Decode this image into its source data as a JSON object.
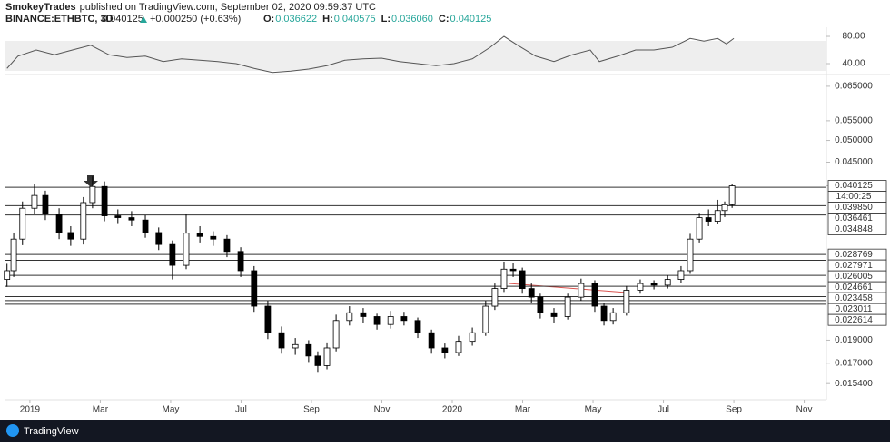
{
  "header": {
    "author": "SmokeyTrades",
    "published": "published on TradingView.com, September 02, 2020 09:59:37 UTC",
    "symbol": "BINANCE:ETHBTC, 3D",
    "last": "0.040125",
    "change": "+0.000250 (+0.63%)",
    "ohlc": [
      {
        "label": "O:",
        "value": "0.036622"
      },
      {
        "label": "H:",
        "value": "0.040575"
      },
      {
        "label": "L:",
        "value": "0.036060"
      },
      {
        "label": "C:",
        "value": "0.040125"
      }
    ]
  },
  "footer": {
    "brand": "TradingView"
  },
  "chart_data": [
    {
      "type": "line",
      "color": "#555555",
      "ylim": [
        24,
        90.7
      ],
      "yticks": [
        {
          "value": 80,
          "label": "80.00"
        },
        {
          "value": 40,
          "label": "40.00"
        }
      ],
      "x": [
        -0.65,
        -0.34,
        0.18,
        0.7,
        1.21,
        1.73,
        2.25,
        2.76,
        3.28,
        3.79,
        4.31,
        4.83,
        5.34,
        5.86,
        6.37,
        6.89,
        7.41,
        7.92,
        8.44,
        8.95,
        9.47,
        9.99,
        10.5,
        11.02,
        11.54,
        12.05,
        12.57,
        13.08,
        13.47,
        13.86,
        14.37,
        14.89,
        15.41,
        15.92,
        16.18,
        16.7,
        17.21,
        17.73,
        18.25,
        18.76,
        19.15,
        19.54,
        19.79,
        20.0
      ],
      "values": [
        33,
        51,
        60,
        53,
        60,
        67,
        53,
        49,
        51,
        43,
        47,
        45,
        43,
        40,
        33,
        27,
        29,
        32,
        37,
        45,
        47,
        48,
        43,
        40,
        37,
        40,
        47,
        64,
        80,
        67,
        51,
        43,
        53,
        60,
        43,
        51,
        60,
        60,
        64,
        77,
        73,
        77,
        69,
        77
      ]
    },
    {
      "type": "candlestick",
      "ylim": [
        0.01424,
        0.0688
      ],
      "log_scale": true,
      "xlim": [
        -0.72,
        22.63
      ],
      "countdown": "14:00:25",
      "xticks": [
        {
          "value": 0,
          "label": "2019"
        },
        {
          "value": 2,
          "label": "Mar"
        },
        {
          "value": 4,
          "label": "May"
        },
        {
          "value": 6,
          "label": "Jul"
        },
        {
          "value": 8,
          "label": "Sep"
        },
        {
          "value": 10,
          "label": "Nov"
        },
        {
          "value": 12,
          "label": "2020"
        },
        {
          "value": 14,
          "label": "Mar"
        },
        {
          "value": 16,
          "label": "May"
        },
        {
          "value": 18,
          "label": "Jul"
        },
        {
          "value": 20,
          "label": "Sep"
        },
        {
          "value": 22,
          "label": "Nov"
        }
      ],
      "yticks": [
        {
          "value": 0.065,
          "label": "0.065000"
        },
        {
          "value": 0.055,
          "label": "0.055000"
        },
        {
          "value": 0.05,
          "label": "0.050000"
        },
        {
          "value": 0.045,
          "label": "0.045000"
        },
        {
          "value": 0.040125,
          "label": "0.040125",
          "style": "current"
        },
        {
          "value": 0.03985,
          "label": "0.039850",
          "style": "level"
        },
        {
          "value": 0.036461,
          "label": "0.036461",
          "style": "level"
        },
        {
          "value": 0.034848,
          "label": "0.034848",
          "style": "level"
        },
        {
          "value": 0.028769,
          "label": "0.028769",
          "style": "level"
        },
        {
          "value": 0.027971,
          "label": "0.027971",
          "style": "level"
        },
        {
          "value": 0.026005,
          "label": "0.026005",
          "style": "level"
        },
        {
          "value": 0.024661,
          "label": "0.024661",
          "style": "level"
        },
        {
          "value": 0.023458,
          "label": "0.023458",
          "style": "level"
        },
        {
          "value": 0.023011,
          "label": "0.023011",
          "style": "level"
        },
        {
          "value": 0.022614,
          "label": "0.022614",
          "style": "level"
        },
        {
          "value": 0.019,
          "label": "0.019000"
        },
        {
          "value": 0.017,
          "label": "0.017000"
        },
        {
          "value": 0.0154,
          "label": "0.015400"
        }
      ],
      "up_color": "#ffffff",
      "down_color": "#000000",
      "x": [
        -0.65,
        -0.46,
        -0.21,
        0.13,
        0.44,
        0.83,
        1.16,
        1.52,
        1.78,
        2.12,
        2.5,
        2.89,
        3.28,
        3.66,
        4.05,
        4.44,
        4.83,
        5.21,
        5.6,
        5.99,
        6.37,
        6.76,
        7.15,
        7.54,
        7.92,
        8.18,
        8.44,
        8.7,
        9.08,
        9.47,
        9.86,
        10.25,
        10.63,
        11.02,
        11.41,
        11.79,
        12.18,
        12.57,
        12.95,
        13.21,
        13.47,
        13.73,
        13.99,
        14.25,
        14.5,
        14.89,
        15.28,
        15.66,
        16.05,
        16.31,
        16.57,
        16.95,
        17.34,
        17.73,
        18.12,
        18.5,
        18.76,
        19.02,
        19.28,
        19.54,
        19.74,
        19.95
      ],
      "open": [
        0.0255,
        0.0266,
        0.031,
        0.036,
        0.0383,
        0.035,
        0.032,
        0.031,
        0.037,
        0.04,
        0.0347,
        0.0344,
        0.034,
        0.032,
        0.0302,
        0.0273,
        0.0319,
        0.0314,
        0.031,
        0.0292,
        0.0266,
        0.0224,
        0.0197,
        0.0183,
        0.0186,
        0.0176,
        0.0168,
        0.0183,
        0.0209,
        0.0217,
        0.0213,
        0.0205,
        0.0213,
        0.0209,
        0.0197,
        0.0183,
        0.0179,
        0.0189,
        0.0197,
        0.0224,
        0.0244,
        0.0268,
        0.0266,
        0.0244,
        0.0234,
        0.0217,
        0.0213,
        0.0234,
        0.025,
        0.0224,
        0.0209,
        0.0217,
        0.0242,
        0.025,
        0.0248,
        0.0255,
        0.0266,
        0.031,
        0.0344,
        0.0338,
        0.0356,
        0.036622
      ],
      "high": [
        0.0275,
        0.032,
        0.0372,
        0.0405,
        0.0392,
        0.036,
        0.033,
        0.038,
        0.042,
        0.041,
        0.0358,
        0.0355,
        0.0348,
        0.0328,
        0.0308,
        0.035,
        0.033,
        0.0322,
        0.0316,
        0.0298,
        0.0272,
        0.023,
        0.0203,
        0.0192,
        0.019,
        0.018,
        0.0188,
        0.0215,
        0.0224,
        0.0222,
        0.0216,
        0.0219,
        0.0218,
        0.0212,
        0.02,
        0.0187,
        0.0194,
        0.0202,
        0.023,
        0.025,
        0.0278,
        0.0276,
        0.027,
        0.025,
        0.0238,
        0.0222,
        0.0238,
        0.0256,
        0.0254,
        0.0228,
        0.0222,
        0.0247,
        0.0255,
        0.0254,
        0.026,
        0.0272,
        0.0318,
        0.0352,
        0.0358,
        0.0375,
        0.0372,
        0.040575
      ],
      "low": [
        0.0246,
        0.0258,
        0.0301,
        0.035,
        0.034,
        0.031,
        0.03,
        0.0302,
        0.036,
        0.0338,
        0.0335,
        0.033,
        0.0312,
        0.0294,
        0.0255,
        0.0268,
        0.0305,
        0.03,
        0.0284,
        0.0258,
        0.0218,
        0.0191,
        0.0178,
        0.0177,
        0.0171,
        0.0163,
        0.0165,
        0.018,
        0.0204,
        0.0207,
        0.02,
        0.0201,
        0.0204,
        0.0192,
        0.0178,
        0.0174,
        0.0176,
        0.0185,
        0.0194,
        0.022,
        0.024,
        0.0258,
        0.0238,
        0.0228,
        0.0211,
        0.0207,
        0.021,
        0.023,
        0.0218,
        0.0204,
        0.0205,
        0.0214,
        0.0238,
        0.0243,
        0.0244,
        0.0251,
        0.0262,
        0.0305,
        0.033,
        0.0333,
        0.0345,
        0.03606
      ],
      "close": [
        0.0266,
        0.031,
        0.036,
        0.0383,
        0.035,
        0.032,
        0.031,
        0.037,
        0.04,
        0.0347,
        0.0344,
        0.034,
        0.032,
        0.0302,
        0.0273,
        0.0319,
        0.0314,
        0.031,
        0.0292,
        0.0266,
        0.0224,
        0.0197,
        0.0183,
        0.0186,
        0.0176,
        0.0168,
        0.0183,
        0.0209,
        0.0217,
        0.0213,
        0.0205,
        0.0213,
        0.0209,
        0.0197,
        0.0183,
        0.0179,
        0.0189,
        0.0197,
        0.0224,
        0.0244,
        0.0268,
        0.0266,
        0.0244,
        0.0234,
        0.0217,
        0.0213,
        0.0234,
        0.025,
        0.0224,
        0.0209,
        0.0217,
        0.0242,
        0.025,
        0.0248,
        0.0255,
        0.0266,
        0.031,
        0.0344,
        0.0338,
        0.0356,
        0.036622,
        0.040125
      ]
    }
  ]
}
